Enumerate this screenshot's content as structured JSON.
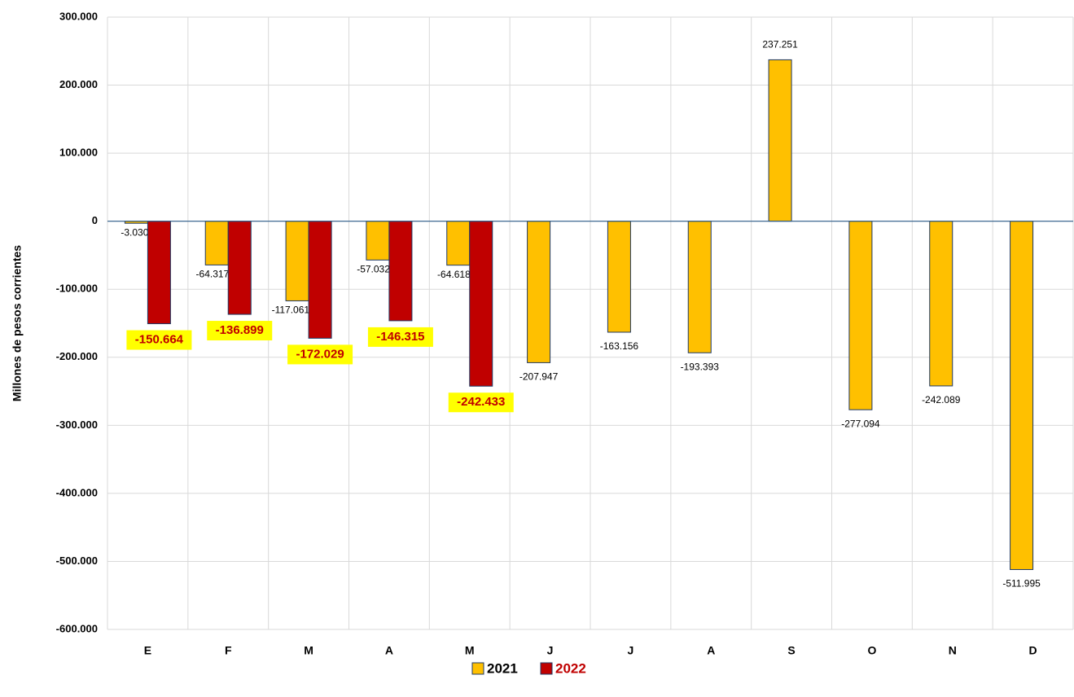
{
  "chart_data": {
    "type": "bar",
    "y_label": "Millones de pesos corrientes",
    "categories": [
      "E",
      "F",
      "M",
      "A",
      "M",
      "J",
      "J",
      "A",
      "S",
      "O",
      "N",
      "D"
    ],
    "series": [
      {
        "name": "2021",
        "color": "#ffc000",
        "label_color": "#000000",
        "values": [
          -3030,
          -64317,
          -117061,
          -57032,
          -64618,
          -207947,
          -163156,
          -193393,
          237251,
          -277094,
          -242089,
          -511995
        ],
        "value_labels": [
          "-3.030",
          "-64.317",
          "-117.061",
          "-57.032",
          "-64.618",
          "-207.947",
          "-163.156",
          "-193.393",
          "237.251",
          "-277.094",
          "-242.089",
          "-511.995"
        ]
      },
      {
        "name": "2022",
        "color": "#c00000",
        "label_color": "#c00000",
        "label_background": "#ffff00",
        "values": [
          -150664,
          -136899,
          -172029,
          -146315,
          -242433,
          null,
          null,
          null,
          null,
          null,
          null,
          null
        ],
        "value_labels": [
          "-150.664",
          "-136.899",
          "-172.029",
          "-146.315",
          "-242.433",
          null,
          null,
          null,
          null,
          null,
          null,
          null
        ]
      }
    ],
    "ylim": [
      -600000,
      300000
    ],
    "yticks": [
      {
        "value": -600000,
        "label": "-600.000"
      },
      {
        "value": -500000,
        "label": "-500.000"
      },
      {
        "value": -400000,
        "label": "-400.000"
      },
      {
        "value": -300000,
        "label": "-300.000"
      },
      {
        "value": -200000,
        "label": "-200.000"
      },
      {
        "value": -100000,
        "label": "-100.000"
      },
      0,
      {
        "value": 100000,
        "label": "100.000"
      },
      {
        "value": 200000,
        "label": "200.000"
      },
      {
        "value": 300000,
        "label": "300.000"
      }
    ],
    "grid": true
  }
}
